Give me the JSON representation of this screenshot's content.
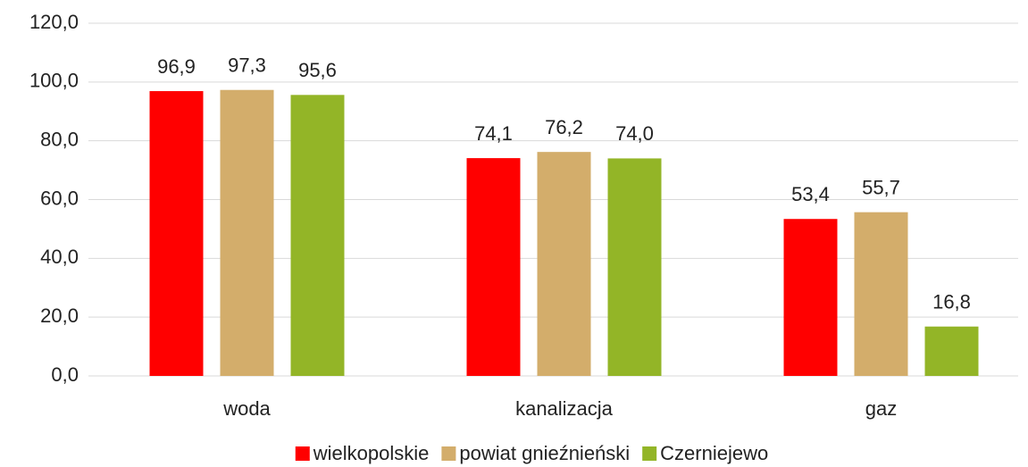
{
  "chart_data": {
    "type": "bar",
    "categories": [
      "woda",
      "kanalizacja",
      "gaz"
    ],
    "series": [
      {
        "name": "wielkopolskie",
        "color": "#ff0000",
        "values": [
          96.9,
          74.1,
          53.4
        ],
        "value_labels": [
          "96,9",
          "74,1",
          "53,4"
        ]
      },
      {
        "name": "powiat gnieźnieński",
        "color": "#d3ad6b",
        "values": [
          97.3,
          76.2,
          55.7
        ],
        "value_labels": [
          "97,3",
          "76,2",
          "55,7"
        ]
      },
      {
        "name": "Czerniejewo",
        "color": "#93b527",
        "values": [
          95.6,
          74.0,
          16.8
        ],
        "value_labels": [
          "95,6",
          "74,0",
          "16,8"
        ]
      }
    ],
    "ylim": [
      0,
      120
    ],
    "yticks": [
      {
        "value": 0,
        "label": "0,0"
      },
      {
        "value": 20,
        "label": "20,0"
      },
      {
        "value": 40,
        "label": "40,0"
      },
      {
        "value": 60,
        "label": "60,0"
      },
      {
        "value": 80,
        "label": "80,0"
      },
      {
        "value": 100,
        "label": "100,0"
      },
      {
        "value": 120,
        "label": "120,0"
      }
    ],
    "grid": true,
    "legend": "bottom"
  }
}
